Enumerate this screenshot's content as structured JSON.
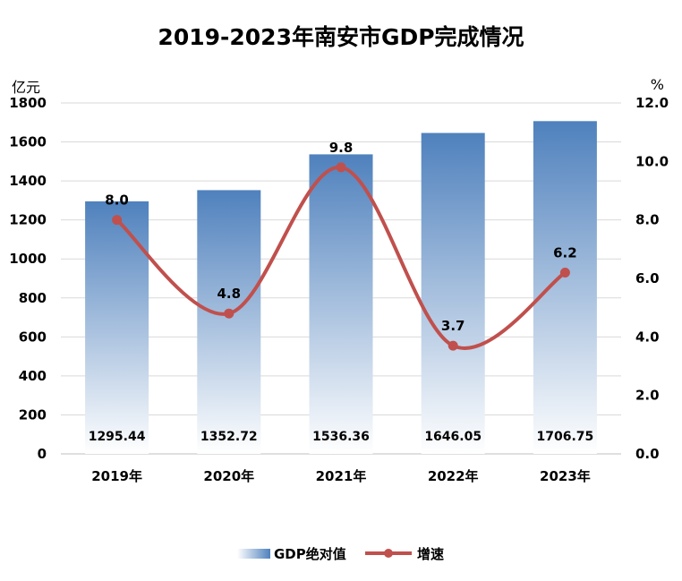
{
  "chart_data": {
    "type": "bar+line",
    "title": "2019-2023年南安市GDP完成情况",
    "categories": [
      "2019年",
      "2020年",
      "2021年",
      "2022年",
      "2023年"
    ],
    "series": [
      {
        "name": "GDP绝对值",
        "type": "bar",
        "axis": "left",
        "values": [
          1295.44,
          1352.72,
          1536.36,
          1646.05,
          1706.75
        ],
        "labels": [
          "1295.44",
          "1352.72",
          "1536.36",
          "1646.05",
          "1706.75"
        ],
        "color": "#4f81bd"
      },
      {
        "name": "增速",
        "type": "line",
        "axis": "right",
        "values": [
          8.0,
          4.8,
          9.8,
          3.7,
          6.2
        ],
        "labels": [
          "8.0",
          "4.8",
          "9.8",
          "3.7",
          "6.2"
        ],
        "color": "#c0504d"
      }
    ],
    "y_left": {
      "unit": "亿元",
      "range": [
        0,
        1800
      ],
      "ticks": [
        "0",
        "200",
        "400",
        "600",
        "800",
        "1000",
        "1200",
        "1400",
        "1600",
        "1800"
      ]
    },
    "y_right": {
      "unit": "%",
      "range": [
        0,
        12
      ],
      "ticks": [
        "0.0",
        "2.0",
        "4.0",
        "6.0",
        "8.0",
        "10.0",
        "12.0"
      ]
    },
    "grid": true,
    "legend": "bottom-center"
  }
}
